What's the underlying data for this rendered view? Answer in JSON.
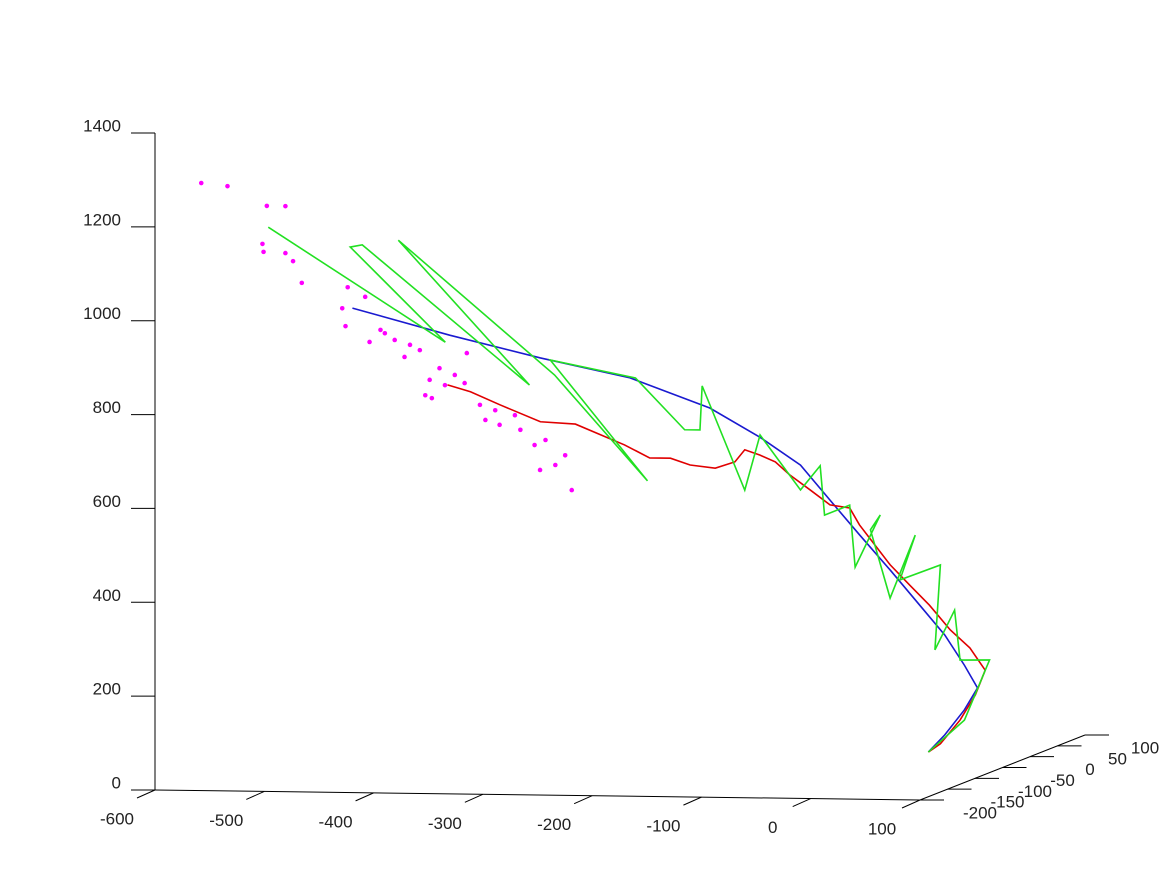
{
  "chart_data": {
    "type": "line3d",
    "xlim": [
      -600,
      100
    ],
    "ylim": [
      -200,
      100
    ],
    "zlim": [
      0,
      1400
    ],
    "xticks": [
      -600,
      -500,
      -400,
      -300,
      -200,
      -100,
      0,
      100
    ],
    "yticks": [
      -200,
      -150,
      -100,
      -50,
      0,
      50,
      100
    ],
    "zticks": [
      0,
      200,
      400,
      600,
      800,
      1000,
      1200,
      1400
    ],
    "series": [
      {
        "type": "line",
        "color": "#1a1ad0",
        "x": [
          -520,
          -431,
          -348,
          -266,
          -193,
          -147,
          -110,
          -83,
          -56,
          -28,
          -1,
          22,
          40,
          52,
          40,
          22,
          7
        ],
        "y": [
          0,
          0,
          0,
          0,
          0,
          0,
          0,
          0,
          0,
          0,
          0,
          0,
          0,
          0,
          0,
          0,
          0
        ],
        "z": [
          937,
          882,
          836,
          796,
          734,
          673,
          615,
          541,
          468,
          394,
          320,
          257,
          193,
          145,
          98,
          44,
          7
        ]
      },
      {
        "type": "line",
        "color": "#e00000",
        "x": [
          -433,
          -412,
          -385,
          -348,
          -316,
          -293,
          -271,
          -248,
          -229,
          -211,
          -188,
          -170,
          -161,
          -147,
          -133,
          -120,
          -101,
          -83,
          -65,
          -56,
          -42,
          -28,
          -10,
          8,
          27,
          45,
          59,
          50,
          36,
          18,
          7
        ],
        "y": [
          0,
          0,
          0,
          0,
          0,
          0,
          0,
          0,
          0,
          0,
          0,
          0,
          0,
          0,
          0,
          0,
          0,
          0,
          0,
          0,
          0,
          0,
          0,
          0,
          0,
          0,
          0,
          0,
          0,
          0,
          0
        ],
        "z": [
          776,
          762,
          735,
          700,
          696,
          674,
          653,
          626,
          626,
          612,
          606,
          620,
          646,
          635,
          621,
          594,
          562,
          531,
          525,
          489,
          447,
          405,
          362,
          320,
          268,
          230,
          183,
          130,
          76,
          25,
          7
        ]
      },
      {
        "type": "line",
        "color": "#22e022",
        "x": [
          -597,
          -435,
          -522,
          -511,
          -358,
          -478,
          -335,
          -250,
          -339,
          -261,
          -216,
          -202,
          -200,
          -161,
          -147,
          -110,
          -92,
          -88,
          -65,
          -60,
          -37,
          -46,
          -28,
          -5,
          -19,
          18,
          13,
          31,
          36,
          63,
          40,
          7
        ],
        "y": [
          0,
          0,
          0,
          0,
          0,
          0,
          0,
          0,
          0,
          0,
          0,
          0,
          0,
          0,
          0,
          0,
          0,
          0,
          0,
          0,
          0,
          0,
          0,
          0,
          0,
          0,
          0,
          0,
          0,
          0,
          0,
          0
        ],
        "z": [
          1107,
          867,
          1067,
          1072,
          778,
          1083,
          800,
          577,
          832,
          796,
          687,
          687,
          781,
          560,
          678,
          562,
          614,
          509,
          531,
          399,
          511,
          479,
          334,
          469,
          373,
          406,
          225,
          310,
          204,
          205,
          76,
          7
        ]
      },
      {
        "type": "scatter",
        "color": "#ff00ff",
        "x": [
          -608,
          -584,
          -548,
          -531,
          -552,
          -551,
          -531,
          -524,
          -516,
          -458,
          -474,
          -479,
          -476,
          -444,
          -440,
          -454,
          -431,
          -417,
          -408,
          -422,
          -390,
          -376,
          -399,
          -385,
          -367,
          -353,
          -339,
          -348,
          -335,
          -321,
          -316,
          -303,
          -293,
          -284,
          -275,
          -298,
          -269,
          -365,
          -403,
          -397
        ],
        "y": [
          -100,
          -100,
          -100,
          -100,
          -100,
          -100,
          -100,
          -100,
          -100,
          -100,
          -100,
          -100,
          -100,
          -100,
          -100,
          -100,
          -100,
          -100,
          -100,
          -100,
          -100,
          -100,
          -100,
          -100,
          -100,
          -100,
          -100,
          -100,
          -100,
          -100,
          -100,
          -100,
          -100,
          -100,
          -100,
          -100,
          -100,
          -100,
          -100,
          -100
        ],
        "z": [
          1247,
          1241,
          1200,
          1200,
          1119,
          1102,
          1100,
          1083,
          1037,
          1009,
          1029,
          984,
          946,
          939,
          932,
          913,
          918,
          908,
          897,
          882,
          859,
          845,
          834,
          823,
          828,
          782,
          771,
          750,
          740,
          761,
          730,
          698,
          709,
          656,
          677,
          645,
          603,
          892,
          801,
          795
        ]
      }
    ]
  }
}
